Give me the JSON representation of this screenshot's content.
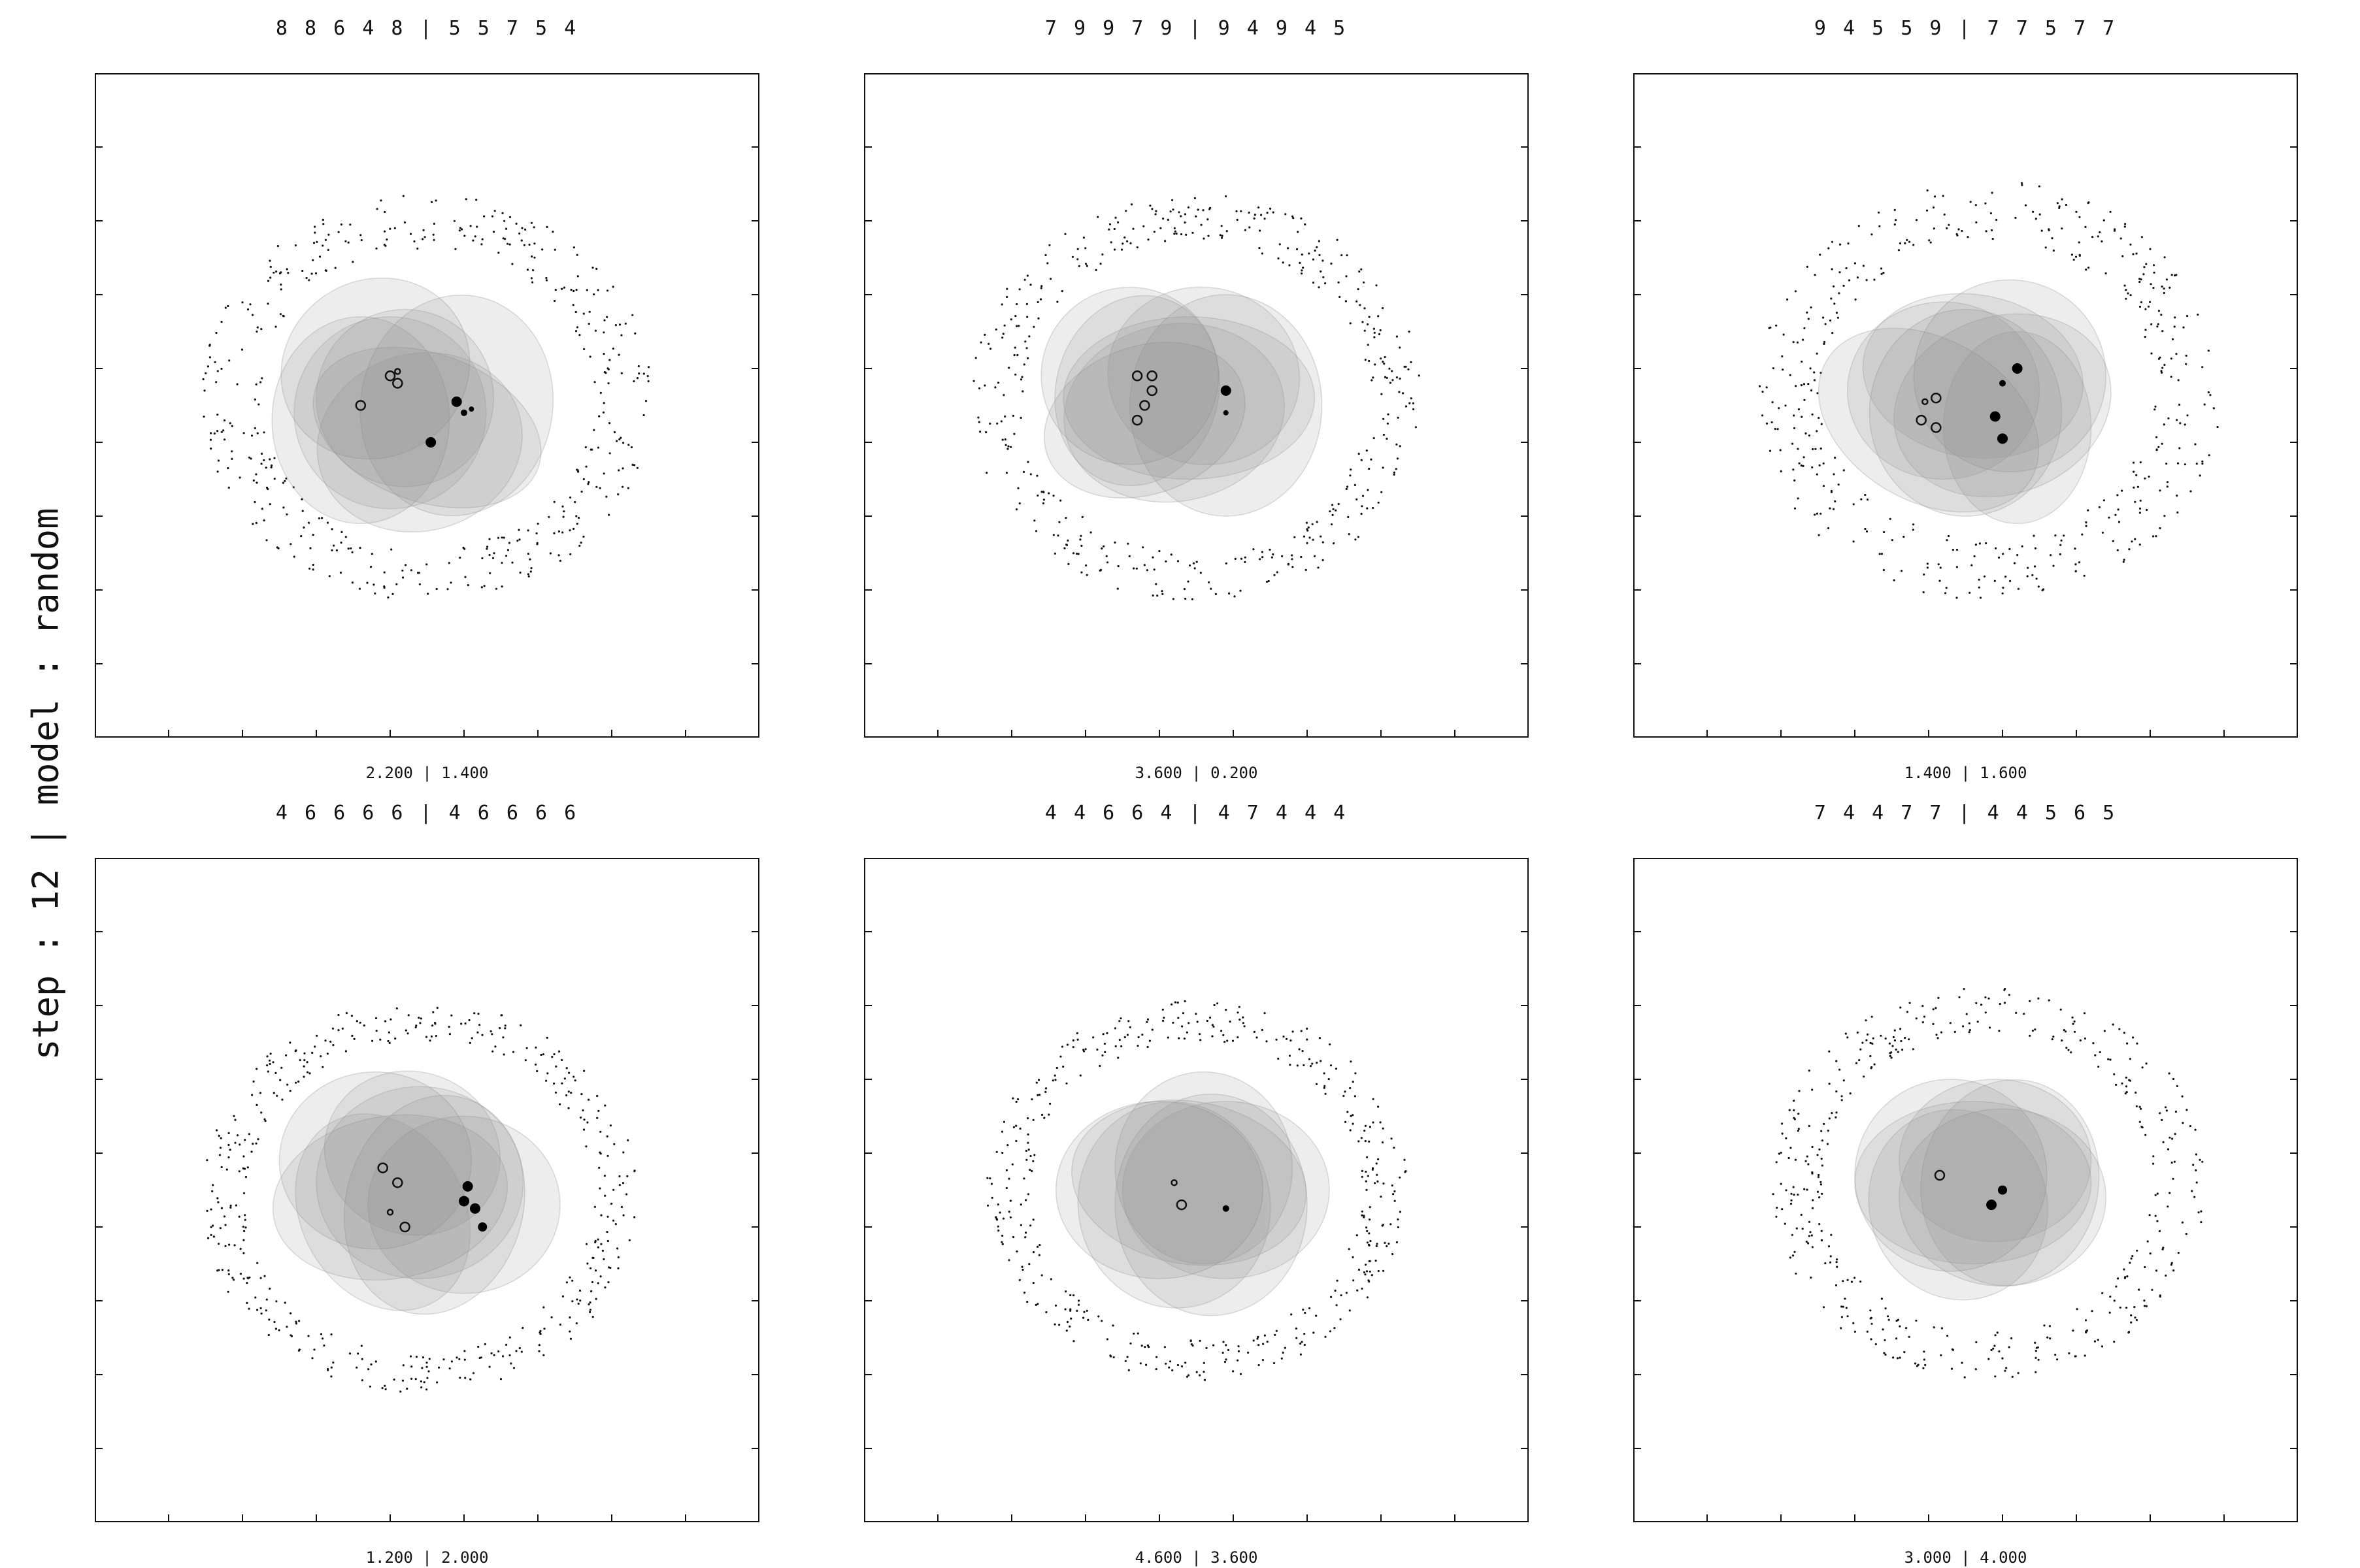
{
  "figure": {
    "suptitle": "step : 12 | model : random"
  },
  "chart_data": [
    {
      "type": "scatter",
      "title": "8 8 6 4 8 | 5 5 7 5 4",
      "xlabel": "2.200 | 1.400",
      "xlim": [
        0,
        9
      ],
      "ylim": [
        0,
        9
      ],
      "ticks": [
        1,
        2,
        3,
        4,
        5,
        6,
        7,
        8
      ],
      "ring": {
        "cx": 4.5,
        "cy": 4.6,
        "inner_r": 2.2,
        "outer_r": 3.0
      },
      "ellipses": [
        {
          "cx": 3.8,
          "cy": 5.0,
          "rx": 1.3,
          "ry": 1.2,
          "rot": -30
        },
        {
          "cx": 4.5,
          "cy": 4.2,
          "rx": 1.6,
          "ry": 1.0,
          "rot": 20
        },
        {
          "cx": 3.6,
          "cy": 4.3,
          "rx": 1.2,
          "ry": 1.4,
          "rot": 0
        },
        {
          "cx": 4.9,
          "cy": 4.5,
          "rx": 1.3,
          "ry": 1.5,
          "rot": 10
        },
        {
          "cx": 4.2,
          "cy": 4.6,
          "rx": 1.2,
          "ry": 1.2,
          "rot": 0
        },
        {
          "cx": 4.4,
          "cy": 4.0,
          "rx": 1.4,
          "ry": 1.2,
          "rot": -15
        },
        {
          "cx": 4.0,
          "cy": 4.4,
          "rx": 1.3,
          "ry": 1.3,
          "rot": 30
        }
      ],
      "open_points": [
        {
          "x": 3.6,
          "y": 4.5,
          "s": 7
        },
        {
          "x": 4.0,
          "y": 4.9,
          "s": 7
        },
        {
          "x": 4.1,
          "y": 4.8,
          "s": 7
        },
        {
          "x": 4.1,
          "y": 4.96,
          "s": 4
        }
      ],
      "filled_points": [
        {
          "x": 4.9,
          "y": 4.55,
          "s": 8
        },
        {
          "x": 5.0,
          "y": 4.4,
          "s": 5
        },
        {
          "x": 5.1,
          "y": 4.45,
          "s": 4
        },
        {
          "x": 4.55,
          "y": 4.0,
          "s": 8
        }
      ]
    },
    {
      "type": "scatter",
      "title": "7 9 9 7 9 | 9 4 9 4 5",
      "xlabel": "3.600 | 0.200",
      "xlim": [
        0,
        9
      ],
      "ylim": [
        0,
        9
      ],
      "ticks": [
        1,
        2,
        3,
        4,
        5,
        6,
        7,
        8
      ],
      "ring": {
        "cx": 4.5,
        "cy": 4.6,
        "inner_r": 2.3,
        "outer_r": 3.0
      },
      "ellipses": [
        {
          "cx": 3.6,
          "cy": 4.9,
          "rx": 1.2,
          "ry": 1.2,
          "rot": 0
        },
        {
          "cx": 3.8,
          "cy": 4.3,
          "rx": 1.4,
          "ry": 1.0,
          "rot": -20
        },
        {
          "cx": 4.9,
          "cy": 4.5,
          "rx": 1.3,
          "ry": 1.5,
          "rot": 0
        },
        {
          "cx": 4.4,
          "cy": 4.6,
          "rx": 1.7,
          "ry": 1.1,
          "rot": 0
        },
        {
          "cx": 3.7,
          "cy": 4.7,
          "rx": 1.1,
          "ry": 1.3,
          "rot": 15
        },
        {
          "cx": 4.6,
          "cy": 4.9,
          "rx": 1.3,
          "ry": 1.2,
          "rot": 10
        },
        {
          "cx": 4.2,
          "cy": 4.4,
          "rx": 1.5,
          "ry": 1.2,
          "rot": -10
        }
      ],
      "open_points": [
        {
          "x": 3.7,
          "y": 4.9,
          "s": 7
        },
        {
          "x": 3.9,
          "y": 4.9,
          "s": 7
        },
        {
          "x": 3.9,
          "y": 4.7,
          "s": 7
        },
        {
          "x": 3.8,
          "y": 4.5,
          "s": 7
        },
        {
          "x": 3.7,
          "y": 4.3,
          "s": 7
        }
      ],
      "filled_points": [
        {
          "x": 4.9,
          "y": 4.7,
          "s": 8
        },
        {
          "x": 4.9,
          "y": 4.4,
          "s": 4
        }
      ]
    },
    {
      "type": "scatter",
      "title": "9 4 5 5 9 | 7 7 5 7 7",
      "xlabel": "1.400 | 1.600",
      "xlim": [
        0,
        9
      ],
      "ylim": [
        0,
        9
      ],
      "ticks": [
        1,
        2,
        3,
        4,
        5,
        6,
        7,
        8
      ],
      "ring": {
        "cx": 4.8,
        "cy": 4.7,
        "inner_r": 2.2,
        "outer_r": 3.1
      },
      "ellipses": [
        {
          "cx": 5.1,
          "cy": 4.9,
          "rx": 1.3,
          "ry": 1.3,
          "rot": 0
        },
        {
          "cx": 4.0,
          "cy": 4.3,
          "rx": 1.6,
          "ry": 1.1,
          "rot": 30
        },
        {
          "cx": 4.5,
          "cy": 4.4,
          "rx": 1.3,
          "ry": 1.4,
          "rot": 0
        },
        {
          "cx": 5.0,
          "cy": 4.5,
          "rx": 1.5,
          "ry": 1.2,
          "rot": -20
        },
        {
          "cx": 4.2,
          "cy": 4.7,
          "rx": 1.3,
          "ry": 1.2,
          "rot": 0
        },
        {
          "cx": 5.2,
          "cy": 4.2,
          "rx": 1.0,
          "ry": 1.3,
          "rot": 0
        },
        {
          "cx": 4.6,
          "cy": 4.9,
          "rx": 1.5,
          "ry": 1.1,
          "rot": 10
        }
      ],
      "open_points": [
        {
          "x": 3.9,
          "y": 4.3,
          "s": 7
        },
        {
          "x": 4.1,
          "y": 4.2,
          "s": 7
        },
        {
          "x": 4.1,
          "y": 4.6,
          "s": 7
        },
        {
          "x": 3.95,
          "y": 4.55,
          "s": 4
        }
      ],
      "filled_points": [
        {
          "x": 5.2,
          "y": 5.0,
          "s": 8
        },
        {
          "x": 5.0,
          "y": 4.8,
          "s": 5
        },
        {
          "x": 4.9,
          "y": 4.35,
          "s": 8
        },
        {
          "x": 5.0,
          "y": 4.05,
          "s": 8
        }
      ]
    },
    {
      "type": "scatter",
      "title": "4 6 6 6 6 | 4 6 6 6 6",
      "xlabel": "1.200 | 2.000",
      "xlim": [
        0,
        9
      ],
      "ylim": [
        0,
        9
      ],
      "ticks": [
        1,
        2,
        3,
        4,
        5,
        6,
        7,
        8
      ],
      "ring": {
        "cx": 4.4,
        "cy": 4.4,
        "inner_r": 2.3,
        "outer_r": 2.9
      },
      "ellipses": [
        {
          "cx": 3.8,
          "cy": 4.9,
          "rx": 1.3,
          "ry": 1.2,
          "rot": 0
        },
        {
          "cx": 4.6,
          "cy": 4.3,
          "rx": 1.2,
          "ry": 1.5,
          "rot": 15
        },
        {
          "cx": 4.0,
          "cy": 4.4,
          "rx": 1.6,
          "ry": 1.1,
          "rot": -10
        },
        {
          "cx": 5.0,
          "cy": 4.3,
          "rx": 1.3,
          "ry": 1.2,
          "rot": 0
        },
        {
          "cx": 4.3,
          "cy": 5.0,
          "rx": 1.2,
          "ry": 1.1,
          "rot": 20
        },
        {
          "cx": 4.4,
          "cy": 4.6,
          "rx": 1.4,
          "ry": 1.3,
          "rot": 0
        },
        {
          "cx": 3.9,
          "cy": 4.2,
          "rx": 1.1,
          "ry": 1.4,
          "rot": -30
        }
      ],
      "open_points": [
        {
          "x": 3.9,
          "y": 4.8,
          "s": 7
        },
        {
          "x": 4.1,
          "y": 4.6,
          "s": 7
        },
        {
          "x": 4.2,
          "y": 4.0,
          "s": 7
        },
        {
          "x": 4.0,
          "y": 4.2,
          "s": 4
        }
      ],
      "filled_points": [
        {
          "x": 5.05,
          "y": 4.55,
          "s": 8
        },
        {
          "x": 5.0,
          "y": 4.35,
          "s": 8
        },
        {
          "x": 5.15,
          "y": 4.25,
          "s": 8
        },
        {
          "x": 5.25,
          "y": 4.0,
          "s": 7
        }
      ]
    },
    {
      "type": "scatter",
      "title": "4 4 6 6 4 | 4 7 4 4 4",
      "xlabel": "4.600 | 3.600",
      "xlim": [
        0,
        9
      ],
      "ylim": [
        0,
        9
      ],
      "ticks": [
        1,
        2,
        3,
        4,
        5,
        6,
        7,
        8
      ],
      "ring": {
        "cx": 4.5,
        "cy": 4.5,
        "inner_r": 2.2,
        "outer_r": 2.8
      },
      "ellipses": [
        {
          "cx": 4.0,
          "cy": 4.5,
          "rx": 1.4,
          "ry": 1.2,
          "rot": 0
        },
        {
          "cx": 4.7,
          "cy": 4.3,
          "rx": 1.3,
          "ry": 1.5,
          "rot": 0
        },
        {
          "cx": 4.4,
          "cy": 4.6,
          "rx": 1.6,
          "ry": 1.1,
          "rot": 10
        },
        {
          "cx": 4.6,
          "cy": 4.8,
          "rx": 1.2,
          "ry": 1.3,
          "rot": 0
        },
        {
          "cx": 4.2,
          "cy": 4.3,
          "rx": 1.3,
          "ry": 1.4,
          "rot": -10
        },
        {
          "cx": 4.9,
          "cy": 4.5,
          "rx": 1.4,
          "ry": 1.2,
          "rot": 0
        }
      ],
      "open_points": [
        {
          "x": 4.2,
          "y": 4.6,
          "s": 4
        },
        {
          "x": 4.3,
          "y": 4.3,
          "s": 7
        }
      ],
      "filled_points": [
        {
          "x": 4.9,
          "y": 4.25,
          "s": 5
        }
      ]
    },
    {
      "type": "scatter",
      "title": "7 4 4 7 7 | 4 4 5 6 5",
      "xlabel": "3.000 | 4.000",
      "xlim": [
        0,
        9
      ],
      "ylim": [
        0,
        9
      ],
      "ticks": [
        1,
        2,
        3,
        4,
        5,
        6,
        7,
        8
      ],
      "ring": {
        "cx": 4.8,
        "cy": 4.6,
        "inner_r": 2.2,
        "outer_r": 2.9
      },
      "ellipses": [
        {
          "cx": 4.3,
          "cy": 4.7,
          "rx": 1.3,
          "ry": 1.3,
          "rot": 0
        },
        {
          "cx": 5.0,
          "cy": 4.4,
          "rx": 1.4,
          "ry": 1.2,
          "rot": 0
        },
        {
          "cx": 4.6,
          "cy": 4.6,
          "rx": 1.6,
          "ry": 1.1,
          "rot": 0
        },
        {
          "cx": 5.1,
          "cy": 4.6,
          "rx": 1.2,
          "ry": 1.4,
          "rot": 10
        },
        {
          "cx": 4.4,
          "cy": 4.3,
          "rx": 1.2,
          "ry": 1.3,
          "rot": -20
        },
        {
          "cx": 4.9,
          "cy": 4.9,
          "rx": 1.3,
          "ry": 1.1,
          "rot": 0
        }
      ],
      "open_points": [
        {
          "x": 4.15,
          "y": 4.7,
          "s": 7
        }
      ],
      "filled_points": [
        {
          "x": 5.0,
          "y": 4.5,
          "s": 7
        },
        {
          "x": 4.85,
          "y": 4.3,
          "s": 8
        }
      ]
    }
  ]
}
